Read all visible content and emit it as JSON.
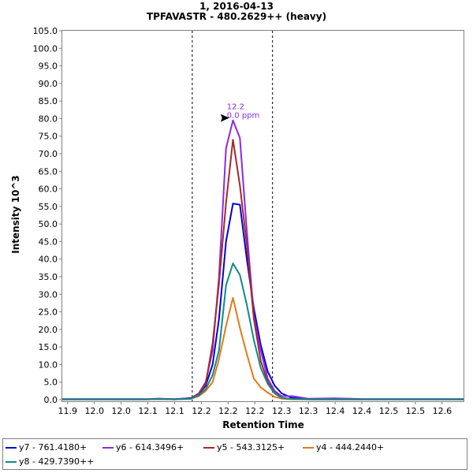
{
  "chart_data": {
    "type": "line",
    "title": "1, 2016-04-13",
    "subtitle": "TPFAVASTR - 480.2629++ (heavy)",
    "xlabel": "Retention Time",
    "ylabel": "Intensity 10^3",
    "xlim": [
      11.89,
      12.64
    ],
    "ylim": [
      0,
      105
    ],
    "x_ticks": [
      "11.9",
      "12.0",
      "12.0",
      "12.1",
      "12.1",
      "12.2",
      "12.2",
      "12.2",
      "12.3",
      "12.3",
      "12.4",
      "12.4",
      "12.5",
      "12.5",
      "12.6"
    ],
    "x_tick_values": [
      11.9,
      11.95,
      12.0,
      12.05,
      12.1,
      12.15,
      12.2,
      12.25,
      12.3,
      12.35,
      12.4,
      12.45,
      12.5,
      12.55,
      12.6
    ],
    "y_ticks": [
      "0.0",
      "5.0",
      "10.0",
      "15.0",
      "20.0",
      "25.0",
      "30.0",
      "35.0",
      "40.0",
      "45.0",
      "50.0",
      "55.0",
      "60.0",
      "65.0",
      "70.0",
      "75.0",
      "80.0",
      "85.0",
      "90.0",
      "95.0",
      "100.0",
      "105.0"
    ],
    "y_tick_values": [
      0,
      5,
      10,
      15,
      20,
      25,
      30,
      35,
      40,
      45,
      50,
      55,
      60,
      65,
      70,
      75,
      80,
      85,
      90,
      95,
      100,
      105
    ],
    "vertical_markers": [
      12.133,
      12.283
    ],
    "annotation": {
      "x": 12.205,
      "y": 79.5,
      "line1": "12.2",
      "line2": "0.0 ppm"
    },
    "x": [
      11.89,
      11.95,
      12.0,
      12.05,
      12.07,
      12.1,
      12.13,
      12.145,
      12.158,
      12.171,
      12.183,
      12.196,
      12.209,
      12.222,
      12.235,
      12.248,
      12.261,
      12.274,
      12.287,
      12.3,
      12.32,
      12.35,
      12.4,
      12.45,
      12.5,
      12.55,
      12.6,
      12.64
    ],
    "series": [
      {
        "name": "y7 - 761.4180+",
        "color": "#0000dd",
        "values": [
          0.1,
          0.1,
          0.1,
          0.1,
          0.3,
          0.1,
          0.5,
          1.5,
          4.0,
          10.0,
          23.0,
          45.0,
          55.8,
          55.5,
          40.0,
          26.0,
          15.5,
          8.0,
          4.0,
          1.8,
          0.5,
          0.1,
          0.1,
          0.1,
          0.1,
          0.1,
          0.1,
          0.1
        ]
      },
      {
        "name": "y6 - 614.3496+",
        "color": "#8a2be2",
        "values": [
          0.2,
          0.2,
          0.2,
          0.2,
          0.3,
          0.2,
          0.4,
          1.8,
          5.0,
          14.0,
          35.0,
          71.5,
          79.5,
          74.5,
          48.0,
          24.0,
          14.0,
          6.0,
          2.5,
          1.0,
          1.0,
          0.3,
          0.4,
          0.2,
          0.2,
          0.2,
          0.2,
          0.2
        ]
      },
      {
        "name": "y5 - 543.3125+",
        "color": "#a52a2a",
        "values": [
          0.1,
          0.1,
          0.1,
          0.1,
          0.2,
          0.1,
          0.3,
          1.5,
          4.5,
          16.0,
          33.0,
          56.0,
          74.0,
          61.0,
          44.0,
          23.0,
          11.0,
          5.0,
          2.0,
          0.5,
          0.2,
          0.1,
          0.1,
          0.1,
          0.1,
          0.1,
          0.1,
          0.1
        ]
      },
      {
        "name": "y4 - 444.2440+",
        "color": "#e07b1a",
        "values": [
          0.1,
          0.1,
          0.1,
          0.1,
          0.1,
          0.1,
          0.2,
          1.0,
          2.5,
          5.0,
          11.5,
          21.0,
          29.0,
          20.5,
          13.0,
          6.0,
          3.5,
          2.0,
          0.8,
          0.3,
          0.1,
          0.1,
          0.1,
          0.1,
          0.1,
          0.1,
          0.1,
          0.1
        ]
      },
      {
        "name": "y8 - 429.7390++",
        "color": "#108a8a",
        "values": [
          0.1,
          0.1,
          0.1,
          0.1,
          0.2,
          0.1,
          0.3,
          1.2,
          3.0,
          7.0,
          14.0,
          32.5,
          38.8,
          35.5,
          27.0,
          17.0,
          9.0,
          4.5,
          1.8,
          0.5,
          0.2,
          0.1,
          0.1,
          0.1,
          0.1,
          0.1,
          0.1,
          0.1
        ]
      }
    ],
    "legend_position": "bottom"
  }
}
